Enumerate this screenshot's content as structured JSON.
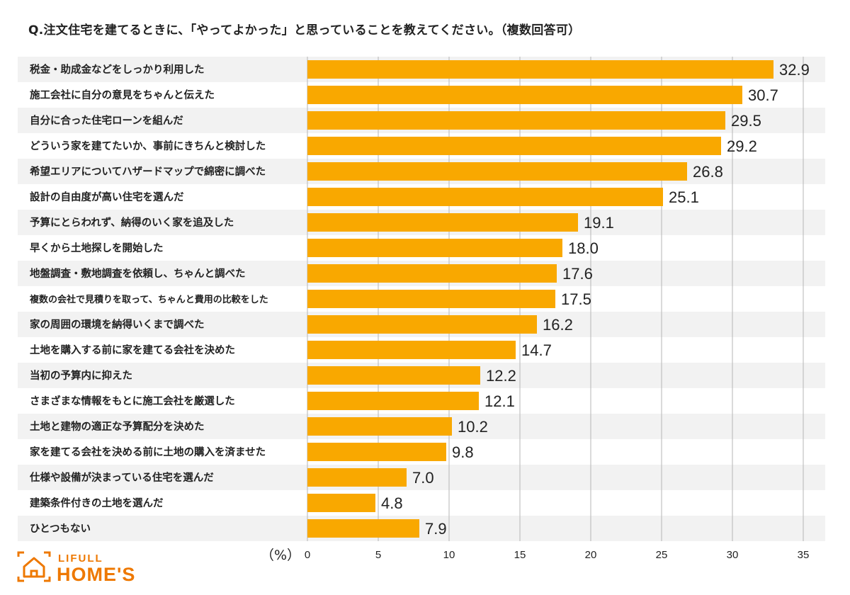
{
  "question": "Q.注文住宅を建てるときに、「やってよかった」と思っていることを教えてください。（複数回答可）",
  "logo": {
    "top": "LIFULL",
    "main": "HOME'S"
  },
  "colors": {
    "bar": "#f9a800",
    "stripe": "#f2f2f2",
    "grid": "#b5b5b5",
    "logo": "#ee7800"
  },
  "chart_data": {
    "type": "bar",
    "orientation": "horizontal",
    "title": "Q.注文住宅を建てるときに、「やってよかった」と思っていることを教えてください。（複数回答可）",
    "xlabel": "（%）",
    "xlim": [
      0,
      35
    ],
    "ticks": [
      0,
      5,
      10,
      15,
      20,
      25,
      30,
      35
    ],
    "categories": [
      "税金・助成金などをしっかり利用した",
      "施工会社に自分の意見をちゃんと伝えた",
      "自分に合った住宅ローンを組んだ",
      "どういう家を建てたいか、事前にきちんと検討した",
      "希望エリアについてハザードマップで綿密に調べた",
      "設計の自由度が高い住宅を選んだ",
      "予算にとらわれず、納得のいく家を追及した",
      "早くから土地探しを開始した",
      "地盤調査・敷地調査を依頼し、ちゃんと調べた",
      "複数の会社で見積りを取って、ちゃんと費用の比較をした",
      "家の周囲の環境を納得いくまで調べた",
      "土地を購入する前に家を建てる会社を決めた",
      "当初の予算内に抑えた",
      "さまざまな情報をもとに施工会社を厳選した",
      "土地と建物の適正な予算配分を決めた",
      "家を建てる会社を決める前に土地の購入を済ませた",
      "仕様や設備が決まっている住宅を選んだ",
      "建築条件付きの土地を選んだ",
      "ひとつもない"
    ],
    "values": [
      32.9,
      30.7,
      29.5,
      29.2,
      26.8,
      25.1,
      19.1,
      18.0,
      17.6,
      17.5,
      16.2,
      14.7,
      12.2,
      12.1,
      10.2,
      9.8,
      7.0,
      4.8,
      7.9
    ],
    "value_labels": [
      "32.9",
      "30.7",
      "29.5",
      "29.2",
      "26.8",
      "25.1",
      "19.1",
      "18.0",
      "17.6",
      "17.5",
      "16.2",
      "14.7",
      "12.2",
      "12.1",
      "10.2",
      "9.8",
      "7.0",
      "4.8",
      "7.9"
    ]
  }
}
